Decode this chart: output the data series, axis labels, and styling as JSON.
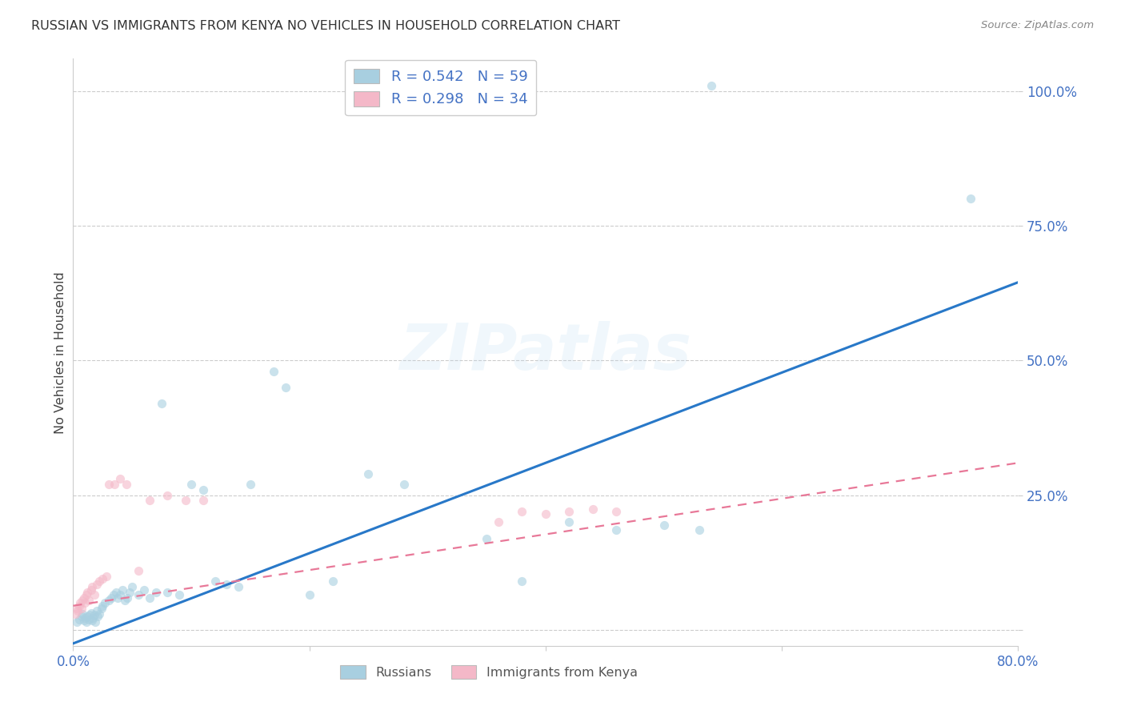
{
  "title": "RUSSIAN VS IMMIGRANTS FROM KENYA NO VEHICLES IN HOUSEHOLD CORRELATION CHART",
  "source": "Source: ZipAtlas.com",
  "ylabel": "No Vehicles in Household",
  "x_min": 0.0,
  "x_max": 0.8,
  "y_min": -0.03,
  "y_max": 1.06,
  "yticks": [
    0.0,
    0.25,
    0.5,
    0.75,
    1.0
  ],
  "ytick_labels": [
    "",
    "25.0%",
    "50.0%",
    "75.0%",
    "100.0%"
  ],
  "xticks": [
    0.0,
    0.2,
    0.4,
    0.6,
    0.8
  ],
  "xtick_labels": [
    "0.0%",
    "",
    "",
    "",
    "80.0%"
  ],
  "watermark": "ZIPatlas",
  "legend_r1": "R = 0.542",
  "legend_n1": "N = 59",
  "legend_r2": "R = 0.298",
  "legend_n2": "N = 34",
  "blue_color": "#a8cfe0",
  "pink_color": "#f4b8c8",
  "blue_line_color": "#2878c8",
  "pink_line_color": "#e87898",
  "tick_label_color": "#4472C4",
  "title_color": "#333333",
  "grid_color": "#cccccc",
  "background_color": "#ffffff",
  "scatter_size": 65,
  "scatter_alpha": 0.6,
  "blue_scatter_x": [
    0.54,
    0.003,
    0.005,
    0.007,
    0.008,
    0.009,
    0.01,
    0.011,
    0.012,
    0.013,
    0.014,
    0.015,
    0.016,
    0.017,
    0.018,
    0.019,
    0.02,
    0.021,
    0.022,
    0.024,
    0.025,
    0.027,
    0.03,
    0.032,
    0.034,
    0.036,
    0.038,
    0.04,
    0.042,
    0.044,
    0.046,
    0.048,
    0.05,
    0.055,
    0.06,
    0.065,
    0.07,
    0.075,
    0.08,
    0.09,
    0.1,
    0.11,
    0.12,
    0.13,
    0.14,
    0.15,
    0.17,
    0.18,
    0.2,
    0.22,
    0.25,
    0.28,
    0.35,
    0.38,
    0.42,
    0.46,
    0.5,
    0.53,
    0.76
  ],
  "blue_scatter_y": [
    1.01,
    0.015,
    0.02,
    0.025,
    0.03,
    0.018,
    0.022,
    0.015,
    0.025,
    0.02,
    0.028,
    0.032,
    0.018,
    0.022,
    0.028,
    0.015,
    0.035,
    0.025,
    0.03,
    0.04,
    0.045,
    0.05,
    0.055,
    0.06,
    0.065,
    0.07,
    0.06,
    0.065,
    0.075,
    0.055,
    0.06,
    0.07,
    0.08,
    0.065,
    0.075,
    0.06,
    0.07,
    0.42,
    0.07,
    0.065,
    0.27,
    0.26,
    0.09,
    0.085,
    0.08,
    0.27,
    0.48,
    0.45,
    0.065,
    0.09,
    0.29,
    0.27,
    0.17,
    0.09,
    0.2,
    0.185,
    0.195,
    0.185,
    0.8
  ],
  "pink_scatter_x": [
    0.002,
    0.003,
    0.004,
    0.005,
    0.006,
    0.007,
    0.008,
    0.009,
    0.01,
    0.011,
    0.012,
    0.013,
    0.015,
    0.016,
    0.018,
    0.02,
    0.022,
    0.025,
    0.028,
    0.03,
    0.035,
    0.04,
    0.045,
    0.055,
    0.065,
    0.08,
    0.095,
    0.11,
    0.36,
    0.38,
    0.4,
    0.42,
    0.44,
    0.46
  ],
  "pink_scatter_y": [
    0.03,
    0.04,
    0.035,
    0.045,
    0.05,
    0.04,
    0.055,
    0.06,
    0.05,
    0.065,
    0.07,
    0.055,
    0.075,
    0.08,
    0.065,
    0.085,
    0.09,
    0.095,
    0.1,
    0.27,
    0.27,
    0.28,
    0.27,
    0.11,
    0.24,
    0.25,
    0.24,
    0.24,
    0.2,
    0.22,
    0.215,
    0.22,
    0.225,
    0.22
  ],
  "blue_trend_x0": 0.0,
  "blue_trend_y0": -0.025,
  "blue_trend_x1": 0.8,
  "blue_trend_y1": 0.645,
  "pink_trend_x0": 0.0,
  "pink_trend_y0": 0.045,
  "pink_trend_x1": 0.8,
  "pink_trend_y1": 0.31
}
